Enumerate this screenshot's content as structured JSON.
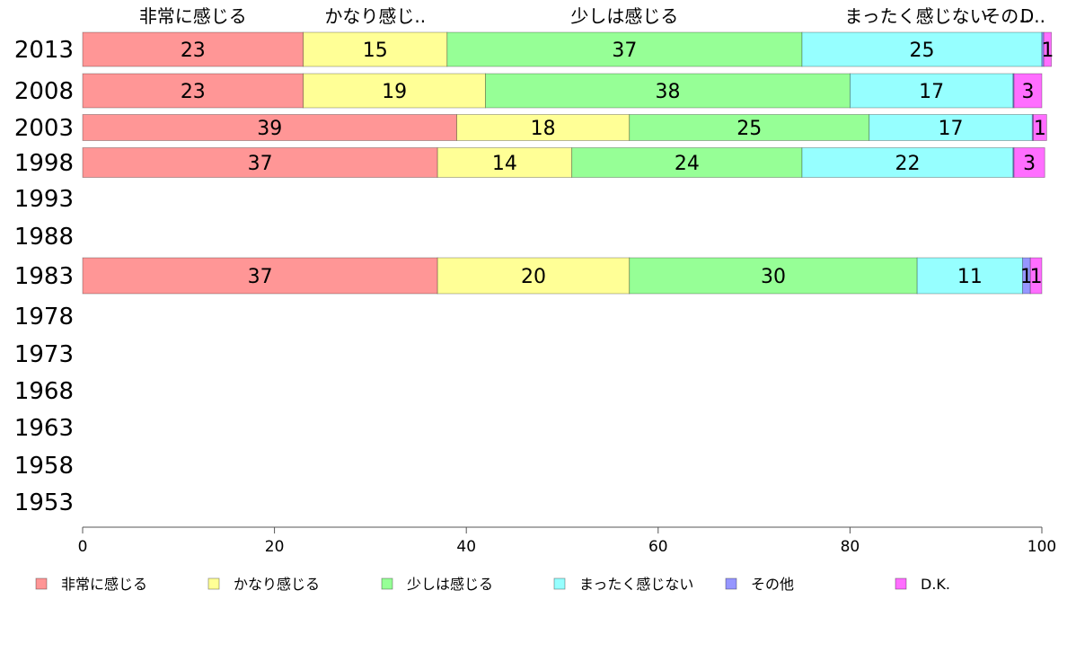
{
  "chart_data": {
    "type": "bar",
    "orientation": "horizontal",
    "stacked": true,
    "xlim": [
      0,
      100
    ],
    "x_ticks": [
      "0",
      "20",
      "40",
      "60",
      "80",
      "100"
    ],
    "categories": [
      "2013",
      "2008",
      "2003",
      "1998",
      "1993",
      "1988",
      "1983",
      "1978",
      "1973",
      "1968",
      "1963",
      "1958",
      "1953"
    ],
    "top_labels": [
      "非常に感じる",
      "かなり感じ..",
      "少しは感じる",
      "まったく感じない",
      "その..",
      "D.."
    ],
    "series": [
      {
        "name": "非常に感じる",
        "color": "#ff9696",
        "values": [
          23,
          23,
          39,
          37,
          null,
          null,
          37,
          null,
          null,
          null,
          null,
          null,
          null
        ]
      },
      {
        "name": "かなり感じる",
        "color": "#ffff96",
        "values": [
          15,
          19,
          18,
          14,
          null,
          null,
          20,
          null,
          null,
          null,
          null,
          null,
          null
        ]
      },
      {
        "name": "少しは感じる",
        "color": "#96ff96",
        "values": [
          37,
          38,
          25,
          24,
          null,
          null,
          30,
          null,
          null,
          null,
          null,
          null,
          null
        ]
      },
      {
        "name": "まったく感じない",
        "color": "#96ffff",
        "values": [
          25,
          17,
          17,
          22,
          null,
          null,
          11,
          null,
          null,
          null,
          null,
          null,
          null
        ]
      },
      {
        "name": "その他",
        "color": "#9696ff",
        "values": [
          0.2,
          0.1,
          0.1,
          0.1,
          null,
          null,
          0.8,
          null,
          null,
          null,
          null,
          null,
          null
        ]
      },
      {
        "name": "D.K.",
        "color": "#ff6eff",
        "values": [
          0.8,
          2.9,
          1.4,
          3.2,
          null,
          null,
          1.2,
          null,
          null,
          null,
          null,
          null,
          null
        ]
      }
    ],
    "labels": [
      [
        "23",
        "15",
        "37",
        "25",
        "",
        "1"
      ],
      [
        "23",
        "19",
        "38",
        "17",
        "",
        "3"
      ],
      [
        "39",
        "18",
        "25",
        "17",
        "",
        "1"
      ],
      [
        "37",
        "14",
        "24",
        "22",
        "",
        "3"
      ],
      null,
      null,
      [
        "37",
        "20",
        "30",
        "11",
        "1",
        "1"
      ],
      null,
      null,
      null,
      null,
      null,
      null
    ],
    "legend_position": "bottom",
    "grid": false
  }
}
